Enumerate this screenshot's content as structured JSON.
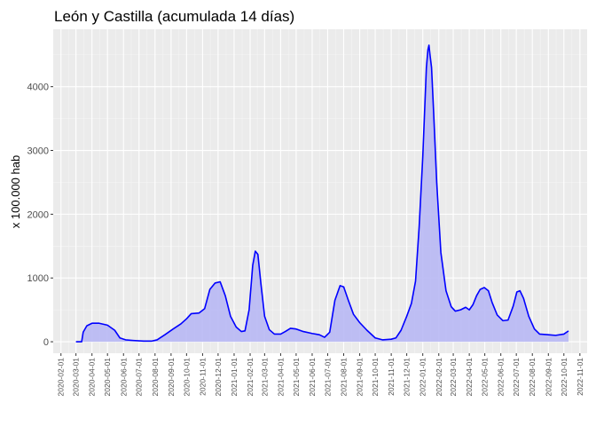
{
  "chart_data": {
    "type": "area",
    "title": "León y Castilla (acumulada 14 días)",
    "xlabel": "",
    "ylabel": "x 100.000 hab",
    "x_ticks": [
      "2020-02-01",
      "2020-03-01",
      "2020-04-01",
      "2020-05-01",
      "2020-06-01",
      "2020-07-01",
      "2020-08-01",
      "2020-09-01",
      "2020-10-01",
      "2020-11-01",
      "2020-12-01",
      "2021-01-01",
      "2021-02-01",
      "2021-03-01",
      "2021-04-01",
      "2021-05-01",
      "2021-06-01",
      "2021-07-01",
      "2021-08-01",
      "2021-09-01",
      "2021-10-01",
      "2021-11-01",
      "2021-12-01",
      "2022-01-01",
      "2022-02-01",
      "2022-03-01",
      "2022-04-01",
      "2022-05-01",
      "2022-06-01",
      "2022-07-01",
      "2022-08-01",
      "2022-09-01",
      "2022-10-01",
      "2022-11-01"
    ],
    "y_ticks": [
      0,
      1000,
      2000,
      3000,
      4000
    ],
    "xlim": [
      "2020-01-17",
      "2022-11-15"
    ],
    "ylim": [
      -180,
      4900
    ],
    "grid": true,
    "line_color": "#0000ff",
    "fill_color": "#b8b8f4",
    "panel_color": "#ebebeb",
    "series": [
      {
        "points": [
          [
            "2020-03-01",
            0
          ],
          [
            "2020-03-12",
            0
          ],
          [
            "2020-03-15",
            150
          ],
          [
            "2020-03-22",
            250
          ],
          [
            "2020-04-01",
            290
          ],
          [
            "2020-04-15",
            290
          ],
          [
            "2020-05-01",
            260
          ],
          [
            "2020-05-15",
            180
          ],
          [
            "2020-05-25",
            60
          ],
          [
            "2020-06-05",
            30
          ],
          [
            "2020-06-20",
            20
          ],
          [
            "2020-07-10",
            10
          ],
          [
            "2020-07-25",
            10
          ],
          [
            "2020-08-05",
            30
          ],
          [
            "2020-08-20",
            110
          ],
          [
            "2020-09-05",
            200
          ],
          [
            "2020-09-20",
            280
          ],
          [
            "2020-10-01",
            360
          ],
          [
            "2020-10-10",
            440
          ],
          [
            "2020-10-25",
            450
          ],
          [
            "2020-11-05",
            520
          ],
          [
            "2020-11-15",
            820
          ],
          [
            "2020-11-25",
            920
          ],
          [
            "2020-12-05",
            940
          ],
          [
            "2020-12-15",
            720
          ],
          [
            "2020-12-25",
            400
          ],
          [
            "2021-01-05",
            230
          ],
          [
            "2021-01-15",
            160
          ],
          [
            "2021-01-22",
            170
          ],
          [
            "2021-01-30",
            500
          ],
          [
            "2021-02-06",
            1200
          ],
          [
            "2021-02-11",
            1420
          ],
          [
            "2021-02-16",
            1370
          ],
          [
            "2021-02-22",
            900
          ],
          [
            "2021-03-01",
            400
          ],
          [
            "2021-03-10",
            190
          ],
          [
            "2021-03-20",
            120
          ],
          [
            "2021-04-01",
            120
          ],
          [
            "2021-04-10",
            160
          ],
          [
            "2021-04-20",
            210
          ],
          [
            "2021-05-01",
            200
          ],
          [
            "2021-05-15",
            160
          ],
          [
            "2021-06-01",
            130
          ],
          [
            "2021-06-15",
            110
          ],
          [
            "2021-06-25",
            70
          ],
          [
            "2021-07-05",
            150
          ],
          [
            "2021-07-15",
            650
          ],
          [
            "2021-07-25",
            880
          ],
          [
            "2021-08-01",
            860
          ],
          [
            "2021-08-10",
            650
          ],
          [
            "2021-08-20",
            430
          ],
          [
            "2021-09-01",
            300
          ],
          [
            "2021-09-15",
            180
          ],
          [
            "2021-10-01",
            60
          ],
          [
            "2021-10-15",
            30
          ],
          [
            "2021-11-01",
            40
          ],
          [
            "2021-11-10",
            60
          ],
          [
            "2021-11-20",
            180
          ],
          [
            "2021-12-01",
            400
          ],
          [
            "2021-12-10",
            600
          ],
          [
            "2021-12-18",
            950
          ],
          [
            "2021-12-25",
            1800
          ],
          [
            "2022-01-01",
            2900
          ],
          [
            "2022-01-05",
            3700
          ],
          [
            "2022-01-08",
            4300
          ],
          [
            "2022-01-11",
            4580
          ],
          [
            "2022-01-13",
            4650
          ],
          [
            "2022-01-15",
            4500
          ],
          [
            "2022-01-18",
            4300
          ],
          [
            "2022-01-22",
            3600
          ],
          [
            "2022-01-28",
            2500
          ],
          [
            "2022-02-05",
            1400
          ],
          [
            "2022-02-15",
            800
          ],
          [
            "2022-02-25",
            550
          ],
          [
            "2022-03-05",
            480
          ],
          [
            "2022-03-15",
            500
          ],
          [
            "2022-03-25",
            540
          ],
          [
            "2022-04-01",
            500
          ],
          [
            "2022-04-08",
            580
          ],
          [
            "2022-04-15",
            720
          ],
          [
            "2022-04-22",
            820
          ],
          [
            "2022-04-30",
            850
          ],
          [
            "2022-05-08",
            800
          ],
          [
            "2022-05-15",
            620
          ],
          [
            "2022-05-25",
            420
          ],
          [
            "2022-06-05",
            330
          ],
          [
            "2022-06-15",
            340
          ],
          [
            "2022-06-25",
            560
          ],
          [
            "2022-07-02",
            780
          ],
          [
            "2022-07-08",
            800
          ],
          [
            "2022-07-15",
            680
          ],
          [
            "2022-07-25",
            400
          ],
          [
            "2022-08-05",
            200
          ],
          [
            "2022-08-15",
            120
          ],
          [
            "2022-09-01",
            110
          ],
          [
            "2022-09-15",
            100
          ],
          [
            "2022-10-01",
            120
          ],
          [
            "2022-10-10",
            170
          ]
        ]
      }
    ]
  }
}
